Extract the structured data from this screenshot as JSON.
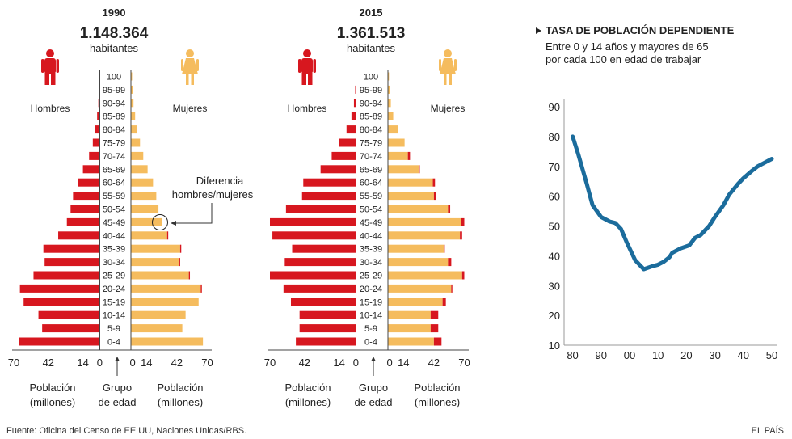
{
  "colors": {
    "male": "#d7171f",
    "female": "#f5bc5e",
    "diff": "#d7171f",
    "line": "#1b6c9c",
    "grid": "#bbbbbb",
    "text": "#222222"
  },
  "icons": {
    "male": "male-person-icon",
    "female": "female-person-icon",
    "bullet": "triangle-bullet-icon"
  },
  "pyramids": [
    {
      "year": "1990",
      "population": "1.148.364",
      "population_label": "habitantes",
      "male_label": "Hombres",
      "female_label": "Mujeres"
    },
    {
      "year": "2015",
      "population": "1.361.513",
      "population_label": "habitantes",
      "male_label": "Hombres",
      "female_label": "Mujeres"
    }
  ],
  "annotation": {
    "line1": "Diferencia",
    "line2": "hombres/mujeres"
  },
  "pyramid_axis": {
    "left_line1": "Población",
    "left_line2": "(millones)",
    "center_line1": "Grupo",
    "center_line2": "de edad",
    "right_line1": "Población",
    "right_line2": "(millones)"
  },
  "chart_data": [
    {
      "type": "bar",
      "title": "1990",
      "subtitle": "1.148.364 habitantes",
      "orientation": "horizontal-pyramid",
      "categories": [
        "100",
        "95-99",
        "90-94",
        "85-89",
        "80-84",
        "75-79",
        "70-74",
        "65-69",
        "60-64",
        "55-59",
        "50-54",
        "45-49",
        "40-44",
        "35-39",
        "30-34",
        "25-29",
        "20-24",
        "15-19",
        "10-14",
        "5-9",
        "0-4"
      ],
      "xticks": [
        70,
        42,
        14,
        0,
        14,
        42,
        70
      ],
      "xlim": [
        0,
        70
      ],
      "xlabel": "Población (millones)",
      "series": [
        {
          "name": "Hombres",
          "values": [
            0.5,
            1,
            1.5,
            2.5,
            4,
            6,
            9,
            14,
            18,
            22,
            24,
            27,
            34,
            46,
            45,
            54,
            65,
            62,
            50,
            47,
            66
          ]
        },
        {
          "name": "Mujeres",
          "values": [
            0.7,
            1.3,
            2,
            3.5,
            5.5,
            8,
            11,
            15,
            20,
            23,
            25,
            28,
            33,
            45,
            44,
            53,
            64,
            62,
            50,
            47,
            66
          ]
        }
      ]
    },
    {
      "type": "bar",
      "title": "2015",
      "subtitle": "1.361.513 habitantes",
      "orientation": "horizontal-pyramid",
      "categories": [
        "100",
        "95-99",
        "90-94",
        "85-89",
        "80-84",
        "75-79",
        "70-74",
        "65-69",
        "60-64",
        "55-59",
        "50-54",
        "45-49",
        "40-44",
        "35-39",
        "30-34",
        "25-29",
        "20-24",
        "15-19",
        "10-14",
        "5-9",
        "0-4"
      ],
      "xticks": [
        70,
        42,
        14,
        0,
        14,
        42,
        70
      ],
      "xlim": [
        0,
        70
      ],
      "xlabel": "Población (millones)",
      "series": [
        {
          "name": "Hombres",
          "values": [
            0.5,
            1,
            2,
            4,
            8,
            14,
            20,
            29,
            43,
            44,
            57,
            70,
            68,
            52,
            58,
            70,
            59,
            53,
            46,
            46,
            49
          ]
        },
        {
          "name": "Mujeres",
          "values": [
            0.6,
            1.2,
            2.3,
            4.5,
            9,
            15,
            18,
            28,
            41,
            42,
            55,
            67,
            66,
            51,
            55,
            68,
            58,
            50,
            39,
            39,
            42
          ]
        }
      ]
    },
    {
      "type": "line",
      "title": "TASA DE POBLACIÓN DEPENDIENTE",
      "subtitle_line1": "Entre 0 y 14 años y mayores de 65",
      "subtitle_line2": "por cada 100 en edad de trabajar",
      "xticks": [
        "80",
        "90",
        "00",
        "10",
        "20",
        "30",
        "40",
        "50"
      ],
      "yticks": [
        10,
        20,
        30,
        40,
        50,
        60,
        70,
        80,
        90
      ],
      "xlim": [
        1977,
        2050
      ],
      "ylim": [
        10,
        90
      ],
      "grid": false,
      "series": [
        {
          "name": "Tasa de población dependiente",
          "x": [
            1980,
            1982,
            1985,
            1987,
            1990,
            1993,
            1995,
            1997,
            1999,
            2000,
            2002,
            2005,
            2008,
            2010,
            2012,
            2014,
            2015,
            2018,
            2021,
            2023,
            2025,
            2028,
            2030,
            2033,
            2035,
            2038,
            2040,
            2043,
            2045,
            2048,
            2050
          ],
          "y": [
            80,
            74,
            64,
            57,
            53,
            51.5,
            51,
            49,
            44.5,
            42.5,
            38.5,
            35.5,
            36.5,
            37,
            38,
            39.5,
            41,
            42.5,
            43.5,
            46,
            47,
            50,
            53,
            57,
            60.5,
            64,
            66,
            68.5,
            70,
            71.5,
            72.5
          ]
        }
      ]
    }
  ],
  "source": "Fuente: Oficina del Censo de EE UU, Naciones Unidas/RBS.",
  "brand": "EL PAÍS"
}
